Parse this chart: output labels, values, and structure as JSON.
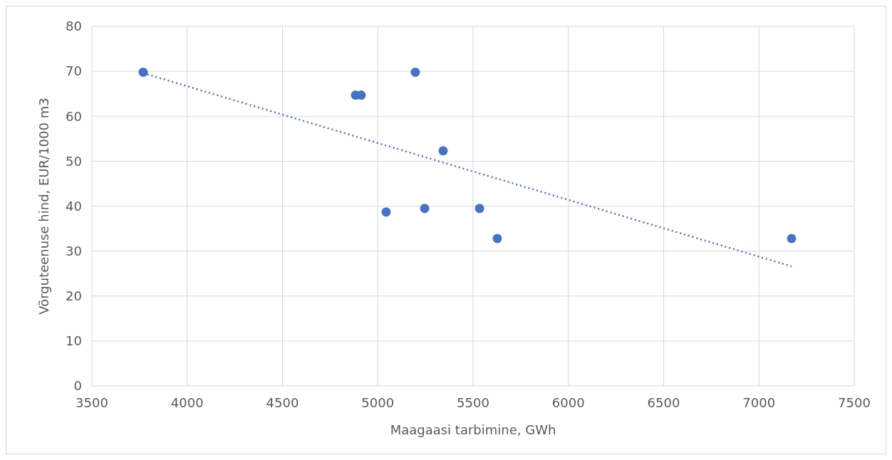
{
  "chart_data": {
    "type": "scatter",
    "xlabel": "Maagaasi tarbimine, GWh",
    "ylabel": "Võrguteenuse hind, EUR/1000 m3",
    "xlim": [
      3500,
      7500
    ],
    "xticks": [
      3500,
      4000,
      4500,
      5000,
      5500,
      6000,
      6500,
      7000,
      7500
    ],
    "ylim": [
      0,
      80
    ],
    "yticks": [
      0,
      10,
      20,
      30,
      40,
      50,
      60,
      70,
      80
    ],
    "grid": true,
    "marker": "circle",
    "series": [
      {
        "color": "#4472c4",
        "x": [
          3769,
          4883,
          4913,
          5197,
          5044,
          5246,
          5343,
          5534,
          5627,
          7171
        ],
        "values": [
          69.8,
          64.7,
          64.7,
          69.8,
          38.7,
          39.5,
          52.3,
          39.5,
          32.8,
          32.8
        ]
      },
      {
        "type": "line",
        "color": "#4472c4",
        "line_style": "dotted",
        "marker": "none",
        "x": [
          3769,
          7171
        ],
        "values": [
          69.6,
          26.6
        ]
      }
    ]
  }
}
